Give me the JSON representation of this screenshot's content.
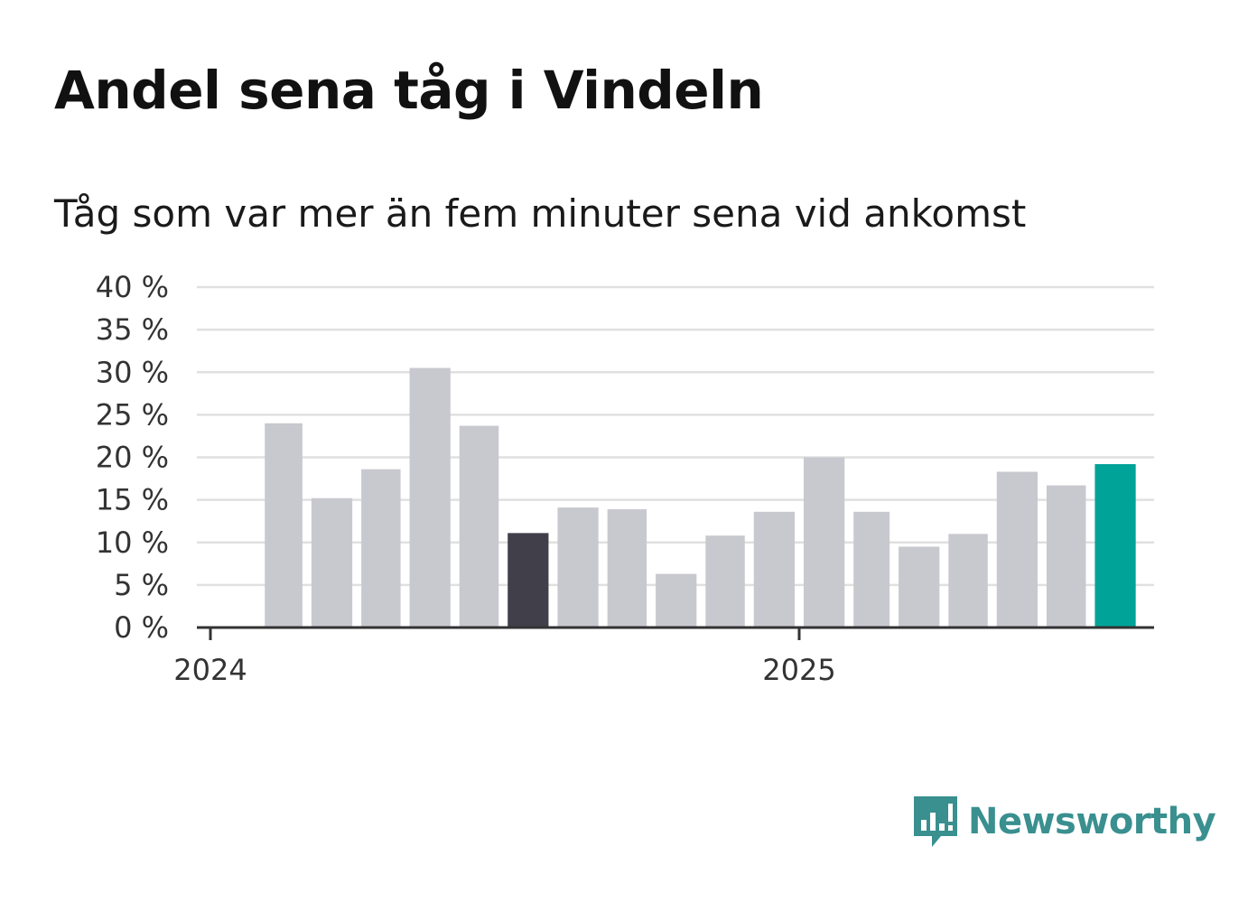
{
  "title": "Andel sena tåg i Vindeln",
  "subtitle": "Tåg som var mer än fem minuter sena vid ankomst",
  "brand": {
    "name": "Newsworthy",
    "color": "#3a8f8f",
    "icon": "newsworthy-chat-bars-icon"
  },
  "colors": {
    "bar_default": "#c8c8cf",
    "bar_highlight_dark": "#41404a",
    "bar_highlight_latest": "#00a398",
    "grid": "#e0e0e0",
    "axis": "#333333"
  },
  "chart_data": {
    "type": "bar",
    "title": "Andel sena tåg i Vindeln",
    "subtitle": "Tåg som var mer än fem minuter sena vid ankomst",
    "xlabel": "",
    "ylabel": "",
    "ylim": [
      0,
      40
    ],
    "yticks": [
      0,
      5,
      10,
      15,
      20,
      25,
      30,
      35,
      40
    ],
    "ytick_labels": [
      "0 %",
      "5 %",
      "10 %",
      "15 %",
      "20 %",
      "25 %",
      "30 %",
      "35 %",
      "40 %"
    ],
    "x_range": [
      "2024-01-01",
      "2025-08-15"
    ],
    "xticks": [
      {
        "date": "2024-01-01",
        "label": "2024"
      },
      {
        "date": "2025-01-01",
        "label": "2025"
      }
    ],
    "grid": true,
    "legend": "none",
    "bars": [
      {
        "start": "2024-02-01",
        "end": "2024-03-01",
        "value": 24.0,
        "color": "default"
      },
      {
        "start": "2024-03-01",
        "end": "2024-04-01",
        "value": 15.2,
        "color": "default"
      },
      {
        "start": "2024-04-01",
        "end": "2024-05-01",
        "value": 18.6,
        "color": "default"
      },
      {
        "start": "2024-05-01",
        "end": "2024-06-01",
        "value": 30.5,
        "color": "default"
      },
      {
        "start": "2024-06-01",
        "end": "2024-07-01",
        "value": 23.7,
        "color": "default"
      },
      {
        "start": "2024-07-01",
        "end": "2024-08-01",
        "value": 11.1,
        "color": "dark"
      },
      {
        "start": "2024-08-01",
        "end": "2024-09-01",
        "value": 14.1,
        "color": "default"
      },
      {
        "start": "2024-09-01",
        "end": "2024-10-01",
        "value": 13.9,
        "color": "default"
      },
      {
        "start": "2024-10-01",
        "end": "2024-11-01",
        "value": 6.3,
        "color": "default"
      },
      {
        "start": "2024-11-01",
        "end": "2024-12-01",
        "value": 10.8,
        "color": "default"
      },
      {
        "start": "2024-12-01",
        "end": "2025-01-01",
        "value": 13.6,
        "color": "default"
      },
      {
        "start": "2025-01-01",
        "end": "2025-02-01",
        "value": 20.0,
        "color": "default"
      },
      {
        "start": "2025-02-01",
        "end": "2025-03-01",
        "value": 13.6,
        "color": "default"
      },
      {
        "start": "2025-03-01",
        "end": "2025-04-01",
        "value": 9.5,
        "color": "default"
      },
      {
        "start": "2025-04-01",
        "end": "2025-05-01",
        "value": 11.0,
        "color": "default"
      },
      {
        "start": "2025-05-01",
        "end": "2025-06-01",
        "value": 18.3,
        "color": "default"
      },
      {
        "start": "2025-06-01",
        "end": "2025-07-01",
        "value": 16.7,
        "color": "default"
      },
      {
        "start": "2025-07-01",
        "end": "2025-08-01",
        "value": 19.2,
        "color": "latest"
      }
    ]
  }
}
